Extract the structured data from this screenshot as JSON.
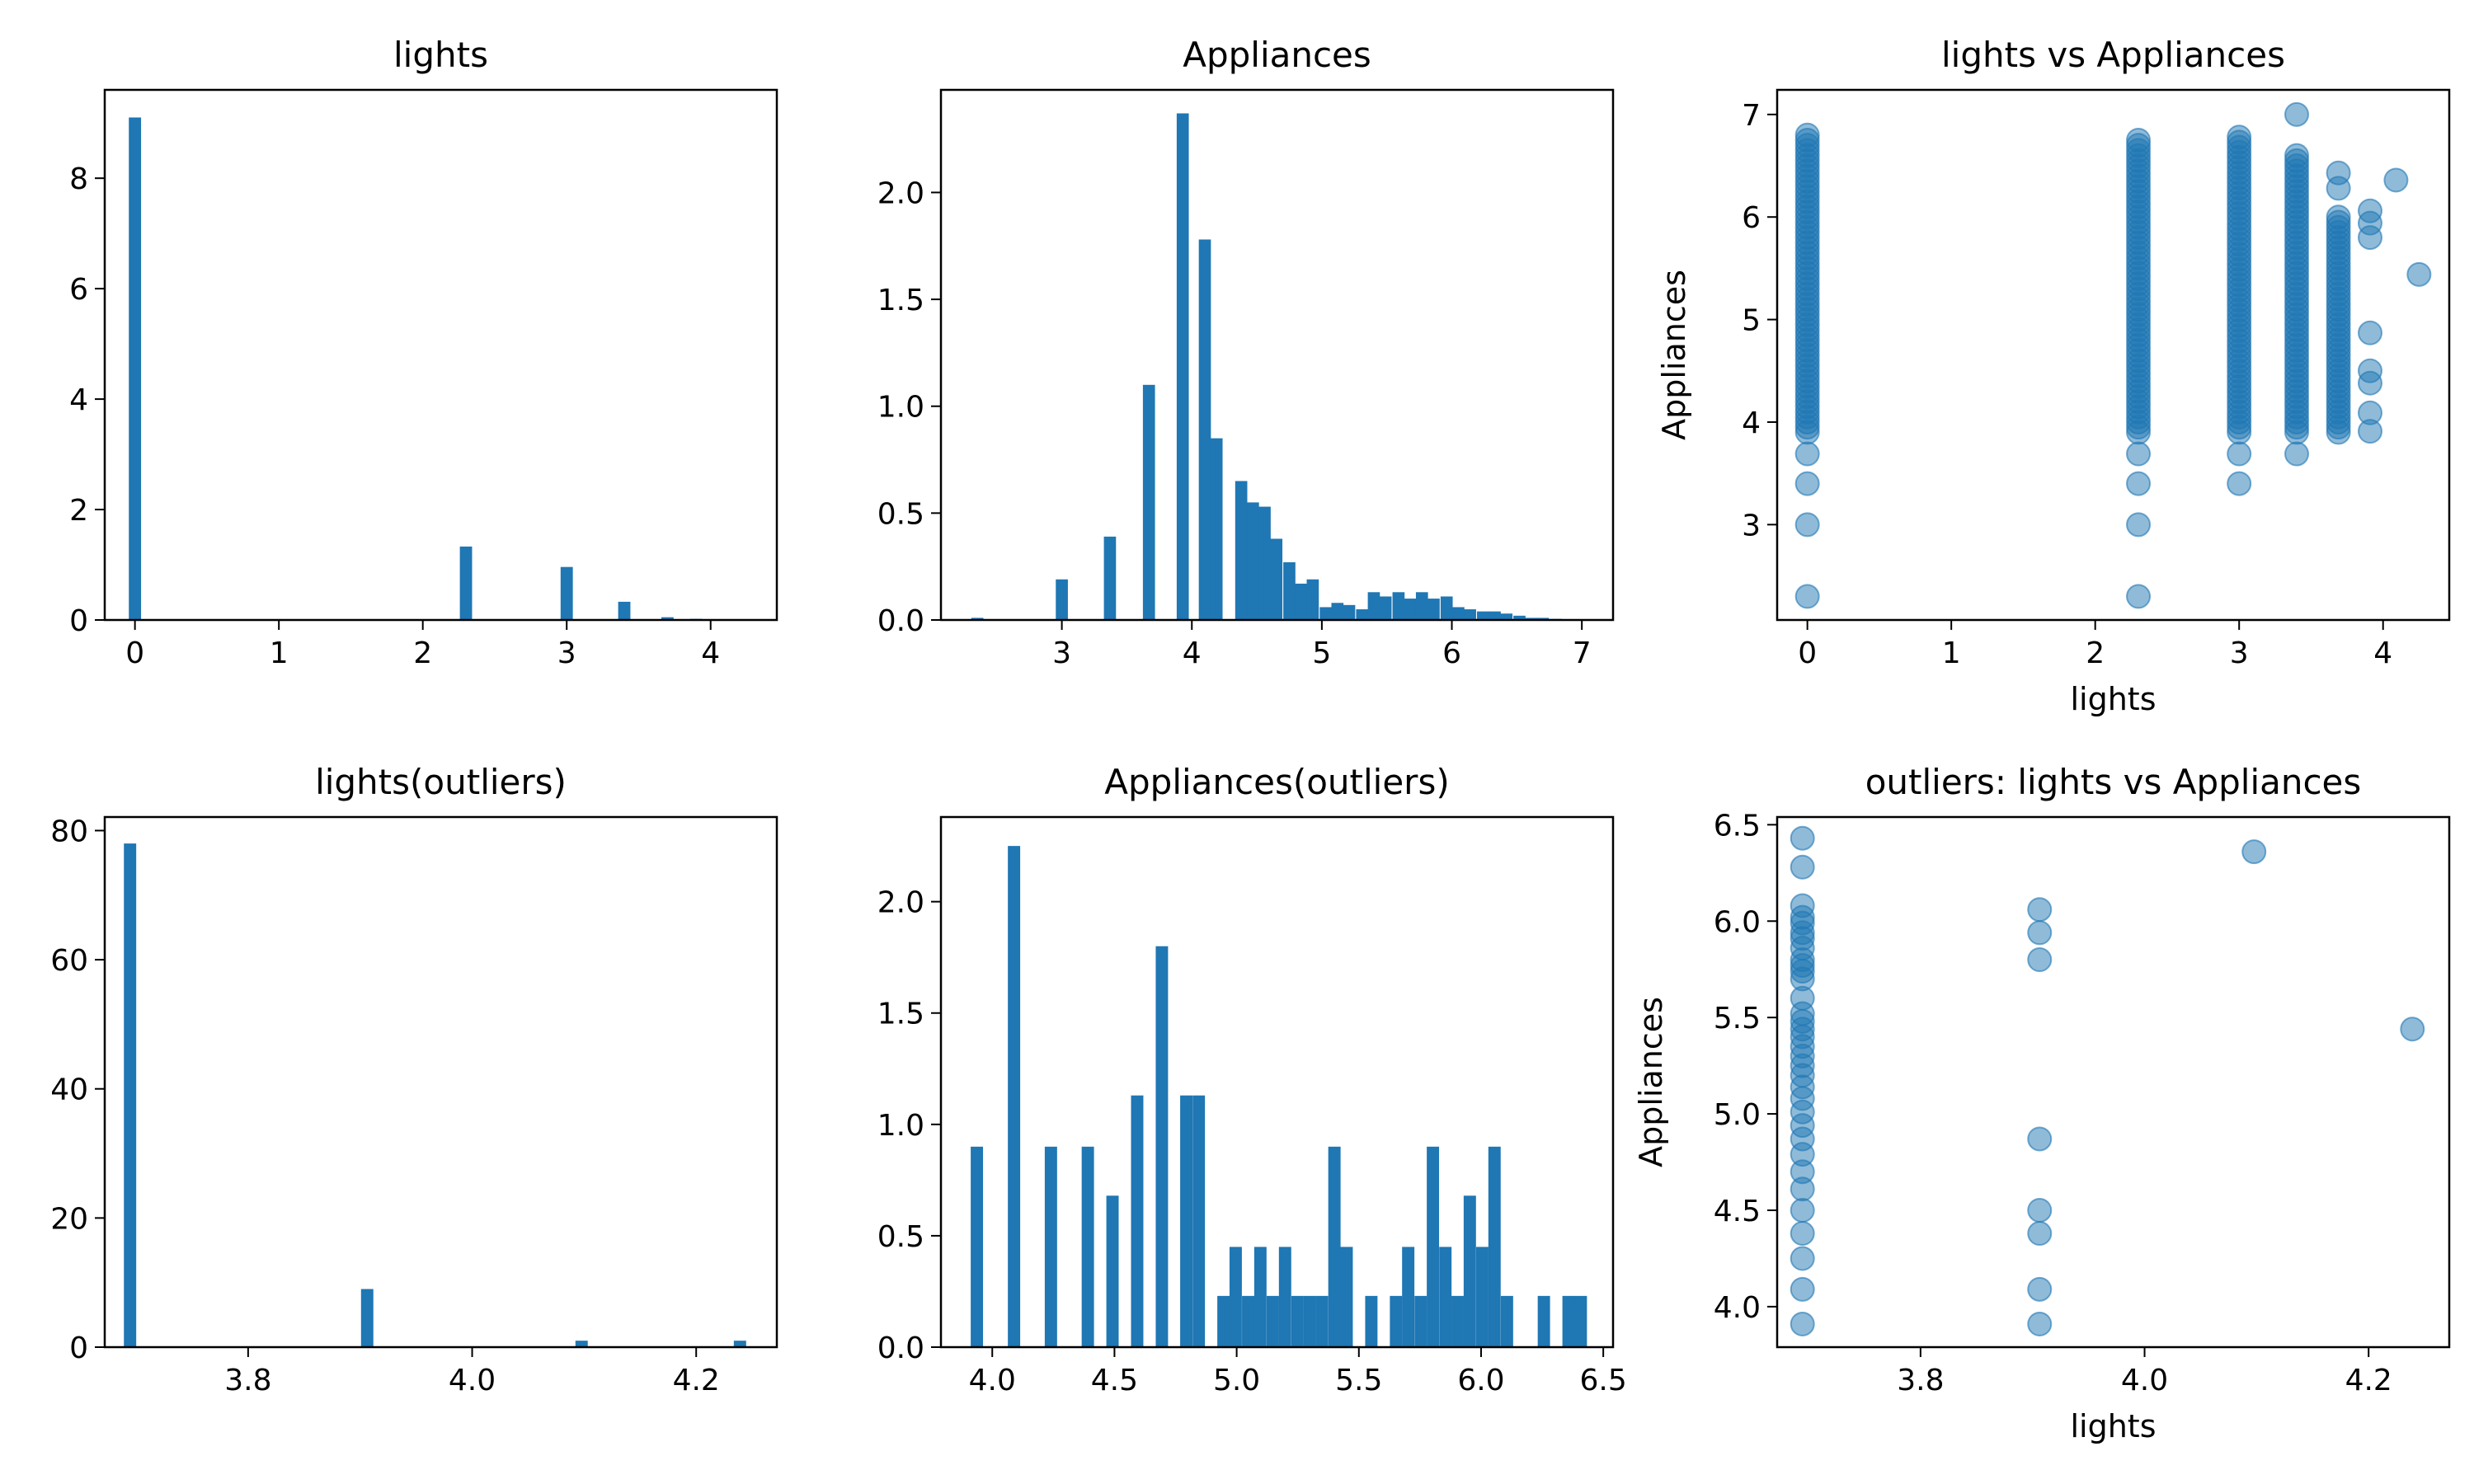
{
  "chart_data": [
    {
      "id": "lights_hist",
      "type": "bar",
      "title": "lights",
      "xlabel": "",
      "ylabel": "",
      "xlim": [
        -0.21,
        4.46
      ],
      "ylim": [
        0,
        9.6
      ],
      "xticks": [
        0,
        1,
        2,
        3,
        4
      ],
      "yticks": [
        0,
        2,
        4,
        6,
        8
      ],
      "bin_width": 0.085,
      "x": [
        0.0,
        2.3,
        3.0,
        3.4,
        3.7,
        3.9,
        4.1
      ],
      "values": [
        9.1,
        1.33,
        0.96,
        0.33,
        0.05,
        0.02,
        0.01
      ]
    },
    {
      "id": "appliances_hist",
      "type": "bar",
      "title": "Appliances",
      "xlabel": "",
      "ylabel": "",
      "xlim": [
        2.07,
        7.24
      ],
      "ylim": [
        0,
        2.48
      ],
      "xticks": [
        3,
        4,
        5,
        6,
        7
      ],
      "yticks": [
        0.0,
        0.5,
        1.0,
        1.5,
        2.0
      ],
      "bin_width": 0.093,
      "x": [
        2.35,
        3.0,
        3.37,
        3.67,
        3.93,
        4.1,
        4.19,
        4.38,
        4.47,
        4.56,
        4.65,
        4.75,
        4.84,
        4.93,
        5.03,
        5.12,
        5.21,
        5.31,
        5.4,
        5.49,
        5.59,
        5.68,
        5.77,
        5.86,
        5.96,
        6.05,
        6.14,
        6.24,
        6.33,
        6.42,
        6.52,
        6.61,
        6.7,
        6.8,
        6.89
      ],
      "values": [
        0.01,
        0.19,
        0.39,
        1.1,
        2.37,
        1.78,
        0.85,
        0.65,
        0.55,
        0.53,
        0.38,
        0.27,
        0.17,
        0.19,
        0.06,
        0.08,
        0.07,
        0.05,
        0.13,
        0.11,
        0.13,
        0.1,
        0.13,
        0.1,
        0.11,
        0.06,
        0.05,
        0.04,
        0.04,
        0.03,
        0.02,
        0.01,
        0.01,
        0.005,
        0.003
      ]
    },
    {
      "id": "lights_vs_appliances",
      "type": "scatter",
      "title": "lights vs Appliances",
      "xlabel": "lights",
      "ylabel": "Appliances",
      "xlim": [
        -0.21,
        4.46
      ],
      "ylim": [
        2.07,
        7.24
      ],
      "xticks": [
        0,
        1,
        2,
        3,
        4
      ],
      "yticks": [
        3,
        4,
        5,
        6,
        7
      ],
      "color": "#1f77b4",
      "columns": [
        {
          "x": 0.0,
          "ymin": 3.9,
          "ymax": 6.8,
          "extra": [
            2.3,
            3.0,
            3.4,
            3.69
          ]
        },
        {
          "x": 2.3,
          "ymin": 3.9,
          "ymax": 6.75,
          "extra": [
            2.3,
            3.0,
            3.4,
            3.69
          ]
        },
        {
          "x": 3.0,
          "ymin": 3.9,
          "ymax": 6.78,
          "extra": [
            3.4,
            3.69
          ]
        },
        {
          "x": 3.4,
          "ymin": 3.9,
          "ymax": 6.6,
          "extra": [
            3.69,
            7.0
          ]
        },
        {
          "x": 3.69,
          "ymin": 3.9,
          "ymax": 6.0,
          "extra": [
            6.28,
            6.43
          ]
        }
      ],
      "points": [
        {
          "x": 3.91,
          "y": 3.91
        },
        {
          "x": 3.91,
          "y": 4.09
        },
        {
          "x": 3.91,
          "y": 4.38
        },
        {
          "x": 3.91,
          "y": 4.5
        },
        {
          "x": 3.91,
          "y": 4.87
        },
        {
          "x": 3.91,
          "y": 5.8
        },
        {
          "x": 3.91,
          "y": 5.94
        },
        {
          "x": 3.91,
          "y": 6.06
        },
        {
          "x": 4.09,
          "y": 6.36
        },
        {
          "x": 4.25,
          "y": 5.44
        }
      ]
    },
    {
      "id": "lights_outliers_hist",
      "type": "bar",
      "title": "lights(outliers)",
      "xlabel": "",
      "ylabel": "",
      "xlim": [
        3.672,
        4.272
      ],
      "ylim": [
        0,
        82.1
      ],
      "xticks": [
        3.8,
        4.0,
        4.2
      ],
      "yticks": [
        0,
        20,
        40,
        60,
        80
      ],
      "bin_width": 0.011,
      "x": [
        3.6946,
        3.9063,
        4.0977,
        4.2391
      ],
      "values": [
        78,
        9,
        1,
        1
      ]
    },
    {
      "id": "appliances_outliers_hist",
      "type": "bar",
      "title": "Appliances(outliers)",
      "xlabel": "",
      "ylabel": "",
      "xlim": [
        3.79,
        6.54
      ],
      "ylim": [
        0,
        2.38
      ],
      "xticks": [
        4.0,
        4.5,
        5.0,
        5.5,
        6.0,
        6.5
      ],
      "yticks": [
        0.0,
        0.5,
        1.0,
        1.5,
        2.0
      ],
      "bin_width": 0.0504,
      "x": [
        3.937,
        4.089,
        4.24,
        4.391,
        4.492,
        4.593,
        4.694,
        4.794,
        4.845,
        4.946,
        4.996,
        5.047,
        5.097,
        5.148,
        5.198,
        5.249,
        5.299,
        5.349,
        5.4,
        5.45,
        5.551,
        5.652,
        5.702,
        5.753,
        5.803,
        5.854,
        5.904,
        5.954,
        6.005,
        6.055,
        6.106,
        6.257,
        6.358,
        6.408
      ],
      "values": [
        0.9,
        2.25,
        0.9,
        0.9,
        0.68,
        1.13,
        1.8,
        1.13,
        1.13,
        0.23,
        0.45,
        0.23,
        0.45,
        0.23,
        0.45,
        0.23,
        0.23,
        0.23,
        0.9,
        0.45,
        0.23,
        0.23,
        0.45,
        0.23,
        0.9,
        0.45,
        0.23,
        0.68,
        0.45,
        0.9,
        0.23,
        0.23,
        0.23,
        0.23
      ]
    },
    {
      "id": "outliers_scatter",
      "type": "scatter",
      "title": "outliers: lights vs Appliances",
      "xlabel": "lights",
      "ylabel": "Appliances",
      "xlim": [
        3.672,
        4.272
      ],
      "ylim": [
        3.79,
        6.54
      ],
      "xticks": [
        3.8,
        4.0,
        4.2
      ],
      "yticks": [
        4.0,
        4.5,
        5.0,
        5.5,
        6.0,
        6.5
      ],
      "color": "#1f77b4",
      "points": [
        {
          "x": 3.6946,
          "y": 3.91
        },
        {
          "x": 3.6946,
          "y": 4.09
        },
        {
          "x": 3.6946,
          "y": 4.25
        },
        {
          "x": 3.6946,
          "y": 4.38
        },
        {
          "x": 3.6946,
          "y": 4.5
        },
        {
          "x": 3.6946,
          "y": 4.61
        },
        {
          "x": 3.6946,
          "y": 4.7
        },
        {
          "x": 3.6946,
          "y": 4.79
        },
        {
          "x": 3.6946,
          "y": 4.87
        },
        {
          "x": 3.6946,
          "y": 4.94
        },
        {
          "x": 3.6946,
          "y": 5.01
        },
        {
          "x": 3.6946,
          "y": 5.08
        },
        {
          "x": 3.6946,
          "y": 5.14
        },
        {
          "x": 3.6946,
          "y": 5.2
        },
        {
          "x": 3.6946,
          "y": 5.25
        },
        {
          "x": 3.6946,
          "y": 5.3
        },
        {
          "x": 3.6946,
          "y": 5.35
        },
        {
          "x": 3.6946,
          "y": 5.4
        },
        {
          "x": 3.6946,
          "y": 5.44
        },
        {
          "x": 3.6946,
          "y": 5.48
        },
        {
          "x": 3.6946,
          "y": 5.52
        },
        {
          "x": 3.6946,
          "y": 5.6
        },
        {
          "x": 3.6946,
          "y": 5.7
        },
        {
          "x": 3.6946,
          "y": 5.74
        },
        {
          "x": 3.6946,
          "y": 5.77
        },
        {
          "x": 3.6946,
          "y": 5.8
        },
        {
          "x": 3.6946,
          "y": 5.86
        },
        {
          "x": 3.6946,
          "y": 5.91
        },
        {
          "x": 3.6946,
          "y": 5.94
        },
        {
          "x": 3.6946,
          "y": 5.99
        },
        {
          "x": 3.6946,
          "y": 6.02
        },
        {
          "x": 3.6946,
          "y": 6.08
        },
        {
          "x": 3.6946,
          "y": 6.28
        },
        {
          "x": 3.6946,
          "y": 6.43
        },
        {
          "x": 3.9063,
          "y": 3.91
        },
        {
          "x": 3.9063,
          "y": 4.09
        },
        {
          "x": 3.9063,
          "y": 4.38
        },
        {
          "x": 3.9063,
          "y": 4.5
        },
        {
          "x": 3.9063,
          "y": 4.87
        },
        {
          "x": 3.9063,
          "y": 5.8
        },
        {
          "x": 3.9063,
          "y": 5.94
        },
        {
          "x": 3.9063,
          "y": 6.06
        },
        {
          "x": 4.0977,
          "y": 6.36
        },
        {
          "x": 4.2391,
          "y": 5.44
        }
      ]
    }
  ]
}
